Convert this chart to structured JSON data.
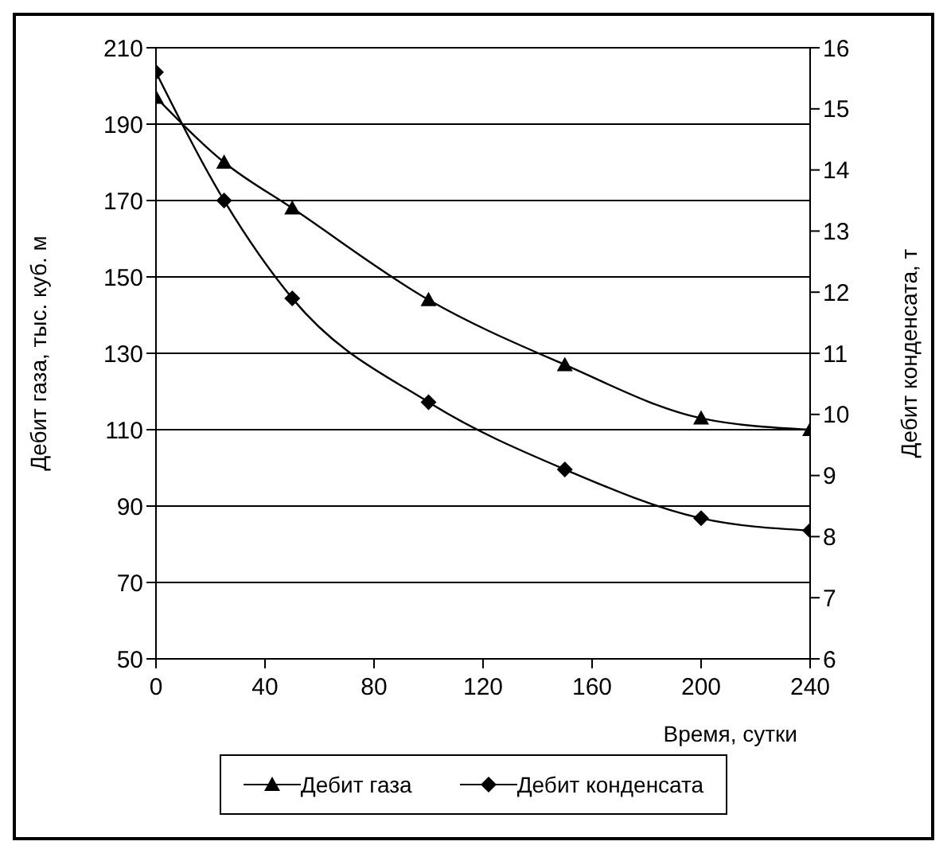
{
  "chart_data": {
    "type": "line",
    "xlabel": "Время, сутки",
    "ylabel": "Дебит газа, тыс. куб. м",
    "y2label": "Дебит конденсата, т",
    "x": [
      0,
      25,
      50,
      100,
      150,
      200,
      240
    ],
    "series": [
      {
        "name": "Дебит газа",
        "color": "#000000",
        "marker": "triangle",
        "values": [
          197,
          180,
          168,
          144,
          127,
          113,
          110
        ]
      },
      {
        "name": "Дебит конденсата",
        "color": "#000000",
        "marker": "diamond",
        "axis": "y2",
        "values": [
          15.6,
          13.5,
          11.9,
          10.2,
          9.1,
          8.3,
          8.1
        ]
      }
    ],
    "xlim": [
      0,
      240
    ],
    "xticks": [
      0,
      40,
      80,
      120,
      160,
      200,
      240
    ],
    "ylim": [
      50,
      210
    ],
    "yticks": [
      50,
      70,
      90,
      110,
      130,
      150,
      170,
      190,
      210
    ],
    "y2lim": [
      6,
      16
    ],
    "y2ticks": [
      6,
      7,
      8,
      9,
      10,
      11,
      12,
      13,
      14,
      15,
      16
    ],
    "grid": "y",
    "legend": "bottom",
    "line_style": "solid"
  }
}
